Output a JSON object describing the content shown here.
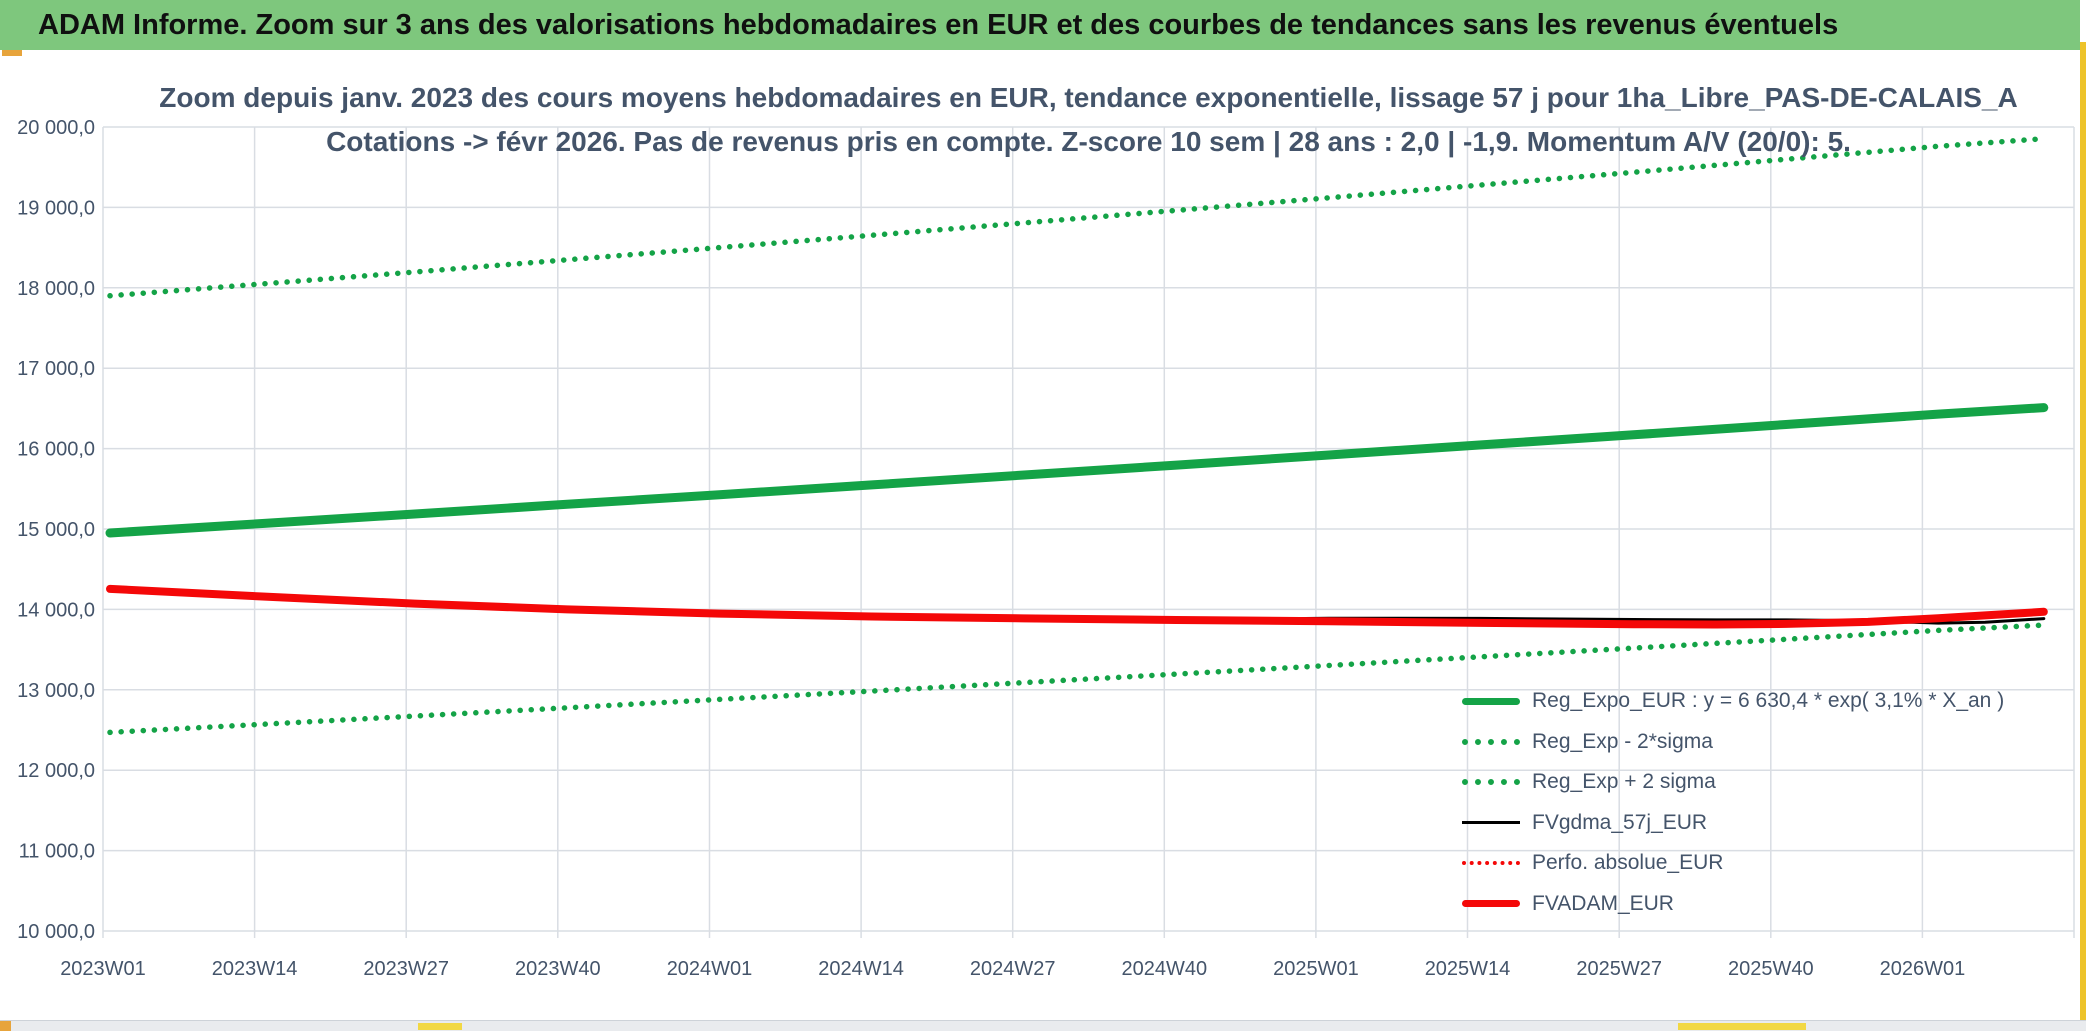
{
  "window": {
    "title": "ADAM Informe. Zoom sur 3 ans des valorisations hebdomadaires en EUR et des courbes de tendances sans les revenus éventuels"
  },
  "chart": {
    "title_line1": "Zoom depuis janv. 2023 des cours moyens hebdomadaires en EUR, tendance exponentielle, lissage 57 j pour 1ha_Libre_PAS-DE-CALAIS_A",
    "title_line2": "Cotations -> févr 2026. Pas de revenus pris en compte. Z-score 10 sem | 28 ans : 2,0 | -1,9. Momentum A/V (20/0): 5."
  },
  "legend": {
    "items": [
      {
        "label": "Reg_Expo_EUR : y = 6 630,4 * exp( 3,1% * X_an )",
        "style": "green-thick",
        "color": "#14a347"
      },
      {
        "label": "Reg_Exp - 2*sigma",
        "style": "green-dotted",
        "color": "#14a347"
      },
      {
        "label": "Reg_Exp + 2 sigma",
        "style": "green-dotted",
        "color": "#14a347"
      },
      {
        "label": "FVgdma_57j_EUR",
        "style": "black-thin",
        "color": "#000000"
      },
      {
        "label": "Perfo. absolue_EUR",
        "style": "red-dotted",
        "color": "#f40808"
      },
      {
        "label": "FVADAM_EUR",
        "style": "red-thick",
        "color": "#f40808"
      }
    ]
  },
  "colors": {
    "header_bg": "#7ec77d",
    "text": "#44546a",
    "green": "#14a347",
    "red": "#f40808",
    "gridline": "#d9dde3",
    "accent_orange": "#e7a43c",
    "accent_yellow": "#f2d844",
    "right_strip": "#edc32a",
    "bottom_bar_bg": "#e9ebee"
  },
  "chart_data": {
    "type": "line",
    "title": "Zoom depuis janv. 2023 des cours moyens hebdomadaires en EUR, tendance exponentielle, lissage 57 j pour 1ha_Libre_PAS-DE-CALAIS_A — Cotations -> févr 2026. Pas de revenus pris en compte. Z-score 10 sem | 28 ans : 2,0 | -1,9. Momentum A/V (20/0): 5.",
    "xlabel": "",
    "ylabel": "",
    "ylim": [
      10000,
      20000
    ],
    "xlim_weeks": [
      0,
      169
    ],
    "grid": true,
    "legend_position": "inside-right",
    "x_tick_labels": [
      "2023W01",
      "2023W14",
      "2023W27",
      "2023W40",
      "2024W01",
      "2024W14",
      "2024W27",
      "2024W40",
      "2025W01",
      "2025W14",
      "2025W27",
      "2025W40",
      "2026W01"
    ],
    "y_ticks": [
      20000,
      19000,
      18000,
      17000,
      16000,
      15000,
      14000,
      13000,
      12000,
      11000,
      10000
    ],
    "y_tick_labels": [
      "20 000,0",
      "19 000,0",
      "18 000,0",
      "17 000,0",
      "16 000,0",
      "15 000,0",
      "14 000,0",
      "13 000,0",
      "12 000,0",
      "11 000,0",
      "10 000,0"
    ],
    "series": [
      {
        "id": "reg_exp_minus_2sigma",
        "name": "Reg_Exp - 2*sigma",
        "color": "#14a347",
        "style": "dotted",
        "width": 5.5,
        "dash": "0.1 11",
        "weeks": [
          0,
          13,
          26,
          39,
          52,
          65,
          78,
          91,
          104,
          117,
          130,
          143,
          156,
          165
        ],
        "values": [
          12470,
          12571,
          12673,
          12776,
          12880,
          12984,
          13089,
          13195,
          13302,
          13410,
          13519,
          13628,
          13739,
          13805
        ]
      },
      {
        "id": "reg_exp_plus_2sigma",
        "name": "Reg_Exp + 2 sigma",
        "color": "#14a347",
        "style": "dotted",
        "width": 5.5,
        "dash": "0.1 11",
        "weeks": [
          0,
          13,
          26,
          39,
          52,
          65,
          78,
          91,
          104,
          117,
          130,
          143,
          156,
          165
        ],
        "values": [
          17900,
          18048,
          18197,
          18348,
          18500,
          18653,
          18807,
          18963,
          19120,
          19278,
          19437,
          19598,
          19760,
          19855
        ]
      },
      {
        "id": "reg_expo",
        "name": "Reg_Expo_EUR : y = 6 630,4 * exp( 3,1% * X_an )",
        "color": "#14a347",
        "style": "solid",
        "width": 9,
        "dash": null,
        "weeks": [
          0,
          13,
          26,
          39,
          52,
          65,
          78,
          91,
          104,
          117,
          130,
          143,
          156,
          165
        ],
        "values": [
          14950,
          15068,
          15187,
          15307,
          15427,
          15549,
          15672,
          15795,
          15920,
          16046,
          16172,
          16300,
          16429,
          16510
        ]
      },
      {
        "id": "perfo_absolue",
        "name": "Perfo. absolue_EUR",
        "color": "#f40808",
        "style": "dotted",
        "width": 3.5,
        "dash": "0.1 6.5",
        "weeks": [
          0,
          13,
          26,
          39,
          52,
          65,
          78,
          91,
          104,
          117,
          130,
          137,
          143,
          150,
          156,
          160,
          165
        ],
        "values": [
          14255,
          14160,
          14072,
          14000,
          13948,
          13912,
          13888,
          13868,
          13852,
          13832,
          13816,
          13812,
          13820,
          13845,
          13890,
          13925,
          13970
        ]
      },
      {
        "id": "fvgdma_57j",
        "name": "FVgdma_57j_EUR",
        "color": "#000000",
        "style": "solid",
        "width": 3,
        "dash": null,
        "weeks": [
          0,
          13,
          26,
          39,
          52,
          65,
          78,
          91,
          104,
          117,
          130,
          137,
          143,
          150,
          156,
          160,
          165
        ],
        "values": [
          14255,
          14160,
          14072,
          14000,
          13948,
          13912,
          13888,
          13868,
          13890,
          13888,
          13874,
          13870,
          13870,
          13858,
          13830,
          13840,
          13885
        ]
      },
      {
        "id": "fvadam",
        "name": "FVADAM_EUR",
        "color": "#f40808",
        "style": "solid",
        "width": 8,
        "dash": null,
        "weeks": [
          0,
          13,
          26,
          39,
          52,
          65,
          78,
          91,
          104,
          117,
          130,
          137,
          143,
          150,
          156,
          160,
          165
        ],
        "values": [
          14255,
          14160,
          14072,
          14000,
          13948,
          13912,
          13888,
          13868,
          13852,
          13832,
          13816,
          13812,
          13820,
          13845,
          13890,
          13925,
          13970
        ]
      }
    ]
  }
}
